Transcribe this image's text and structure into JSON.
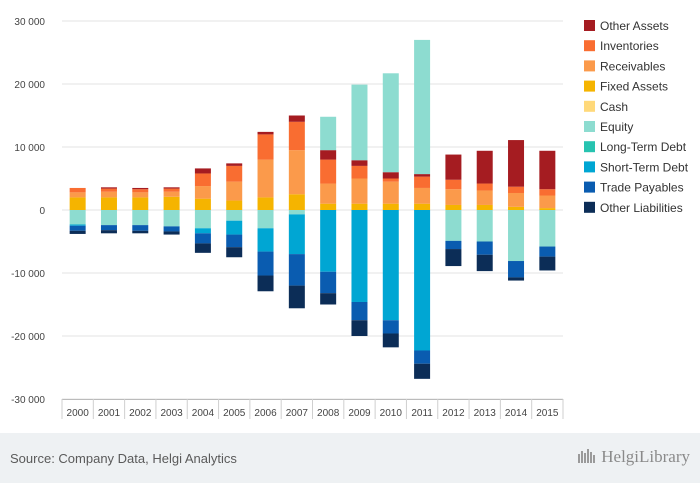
{
  "chart_data": {
    "type": "bar",
    "stacked": true,
    "categories": [
      "2000",
      "2001",
      "2002",
      "2003",
      "2004",
      "2005",
      "2006",
      "2007",
      "2008",
      "2009",
      "2010",
      "2011",
      "2012",
      "2013",
      "2014",
      "2015"
    ],
    "ylim": [
      -30000,
      30000
    ],
    "yticks": [
      30000,
      20000,
      10000,
      0,
      -10000,
      -20000,
      -30000
    ],
    "ytick_labels": [
      "30 000",
      "20 000",
      "10 000",
      "0",
      "-10 000",
      "-20 000",
      "-30 000"
    ],
    "grid": true,
    "legend_position": "right",
    "positive_series": [
      {
        "name": "Fixed Assets",
        "color": "#f5b400",
        "values": [
          2000,
          2000,
          2000,
          2100,
          1800,
          1500,
          2000,
          2500,
          1000,
          1000,
          1000,
          1000,
          800,
          800,
          500,
          300
        ]
      },
      {
        "name": "Receivables",
        "color": "#fb9a4b",
        "values": [
          800,
          900,
          800,
          800,
          2000,
          3000,
          6000,
          7000,
          3200,
          4000,
          3500,
          2500,
          2500,
          2300,
          2200,
          2000
        ]
      },
      {
        "name": "Inventories",
        "color": "#f96d31",
        "values": [
          700,
          500,
          500,
          500,
          2000,
          2500,
          4000,
          4500,
          3800,
          2000,
          500,
          1800,
          1500,
          1100,
          1000,
          1000
        ]
      },
      {
        "name": "Other Assets",
        "color": "#a51c21",
        "values": [
          0,
          200,
          200,
          200,
          800,
          400,
          400,
          1000,
          1500,
          900,
          1000,
          400,
          4000,
          5200,
          7400,
          6100
        ]
      },
      {
        "name": "Equity",
        "color": "#8ddcd0",
        "values": [
          0,
          0,
          0,
          0,
          0,
          0,
          0,
          0,
          5300,
          12000,
          15700,
          21300,
          0,
          0,
          0,
          0
        ]
      },
      {
        "name": "Cash",
        "color": "#ffd97a",
        "values": [
          0,
          0,
          0,
          0,
          0,
          0,
          0,
          0,
          0,
          0,
          0,
          0,
          0,
          0,
          0,
          0
        ]
      },
      {
        "name": "Long-Term Debt",
        "color": "#27c3b0",
        "values": [
          0,
          0,
          0,
          0,
          0,
          0,
          0,
          0,
          0,
          0,
          0,
          0,
          0,
          0,
          0,
          0
        ]
      }
    ],
    "negative_series": [
      {
        "name": "Equity",
        "color": "#8ddcd0",
        "values": [
          -2300,
          -2400,
          -2400,
          -2600,
          -2900,
          -1700,
          -2900,
          -700,
          0,
          0,
          0,
          0,
          -4900,
          -5000,
          -8100,
          -5800
        ]
      },
      {
        "name": "Short-Term Debt",
        "color": "#00a6d3",
        "values": [
          -200,
          0,
          0,
          0,
          -800,
          -2200,
          -3700,
          -6300,
          -9800,
          -14600,
          -17500,
          -22300,
          0,
          0,
          0,
          0
        ]
      },
      {
        "name": "Trade Payables",
        "color": "#0a5cb0",
        "values": [
          -800,
          -800,
          -900,
          -800,
          -1600,
          -2000,
          -3800,
          -5000,
          -3400,
          -2900,
          -2100,
          -2100,
          -1300,
          -2100,
          -2600,
          -1600
        ]
      },
      {
        "name": "Other Liabilities",
        "color": "#0c2d57",
        "values": [
          -500,
          -500,
          -400,
          -500,
          -1500,
          -1600,
          -2500,
          -3600,
          -1800,
          -2500,
          -2200,
          -2400,
          -2700,
          -2600,
          -500,
          -2200
        ]
      },
      {
        "name": "Long-Term Debt",
        "color": "#27c3b0",
        "values": [
          0,
          0,
          0,
          0,
          0,
          0,
          0,
          0,
          0,
          0,
          0,
          0,
          0,
          0,
          0,
          0
        ]
      }
    ],
    "legend": [
      {
        "name": "Other Assets",
        "color": "#a51c21"
      },
      {
        "name": "Inventories",
        "color": "#f96d31"
      },
      {
        "name": "Receivables",
        "color": "#fb9a4b"
      },
      {
        "name": "Fixed Assets",
        "color": "#f5b400"
      },
      {
        "name": "Cash",
        "color": "#ffd97a"
      },
      {
        "name": "Equity",
        "color": "#8ddcd0"
      },
      {
        "name": "Long-Term Debt",
        "color": "#27c3b0"
      },
      {
        "name": "Short-Term Debt",
        "color": "#00a6d3"
      },
      {
        "name": "Trade Payables",
        "color": "#0a5cb0"
      },
      {
        "name": "Other Liabilities",
        "color": "#0c2d57"
      }
    ]
  },
  "footer": {
    "source": "Source: Company Data, Helgi Analytics",
    "logo_text": "HelgiLibrary"
  }
}
